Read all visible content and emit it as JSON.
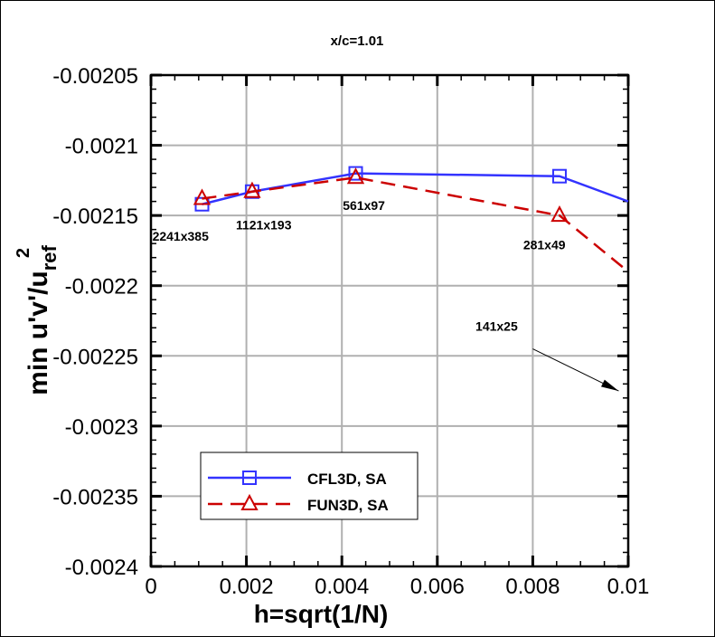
{
  "chart_data": {
    "type": "line",
    "title": "x/c=1.01",
    "xlabel": "h=sqrt(1/N)",
    "ylabel": {
      "main": "min u'v'/u",
      "sub": "ref",
      "sup": "2"
    },
    "xlim": [
      0,
      0.01
    ],
    "ylim": [
      -0.0024,
      -0.00205
    ],
    "grid": true,
    "xticks": [
      0,
      0.002,
      0.004,
      0.006,
      0.008,
      0.01
    ],
    "xtick_labels": [
      "0",
      "0.002",
      "0.004",
      "0.006",
      "0.008",
      "0.01"
    ],
    "yticks": [
      -0.00205,
      -0.0021,
      -0.00215,
      -0.0022,
      -0.00225,
      -0.0023,
      -0.00235,
      -0.0024
    ],
    "ytick_labels": [
      "-0.00205",
      "-0.0021",
      "-0.00215",
      "-0.0022",
      "-0.00225",
      "-0.0023",
      "-0.00235",
      "-0.0024"
    ],
    "legend_position": "bottom-left",
    "series": [
      {
        "name": "CFL3D, SA",
        "color": "#3333ff",
        "marker": "square",
        "dash": "solid",
        "x": [
          0.00107,
          0.00212,
          0.00429,
          0.00856,
          0.01
        ],
        "y": [
          -0.002142,
          -0.002133,
          -0.00212,
          -0.002122,
          -0.00214
        ]
      },
      {
        "name": "FUN3D, SA",
        "color": "#cc0000",
        "marker": "triangle",
        "dash": "dashed",
        "x": [
          0.00107,
          0.00212,
          0.00429,
          0.00856,
          0.01
        ],
        "y": [
          -0.002138,
          -0.002133,
          -0.002123,
          -0.00215,
          -0.00219
        ]
      }
    ],
    "annotations": [
      {
        "text": "2241x385",
        "x": 3e-05,
        "y": -0.002168
      },
      {
        "text": "1121x193",
        "x": 0.00178,
        "y": -0.00216
      },
      {
        "text": "561x97",
        "x": 0.00402,
        "y": -0.002146
      },
      {
        "text": "281x49",
        "x": 0.0078,
        "y": -0.002174
      },
      {
        "text": "141x25",
        "x": 0.0068,
        "y": -0.002232
      }
    ],
    "arrow": {
      "from": [
        0.008,
        -0.002245
      ],
      "to": [
        0.0098,
        -0.002275
      ]
    }
  }
}
